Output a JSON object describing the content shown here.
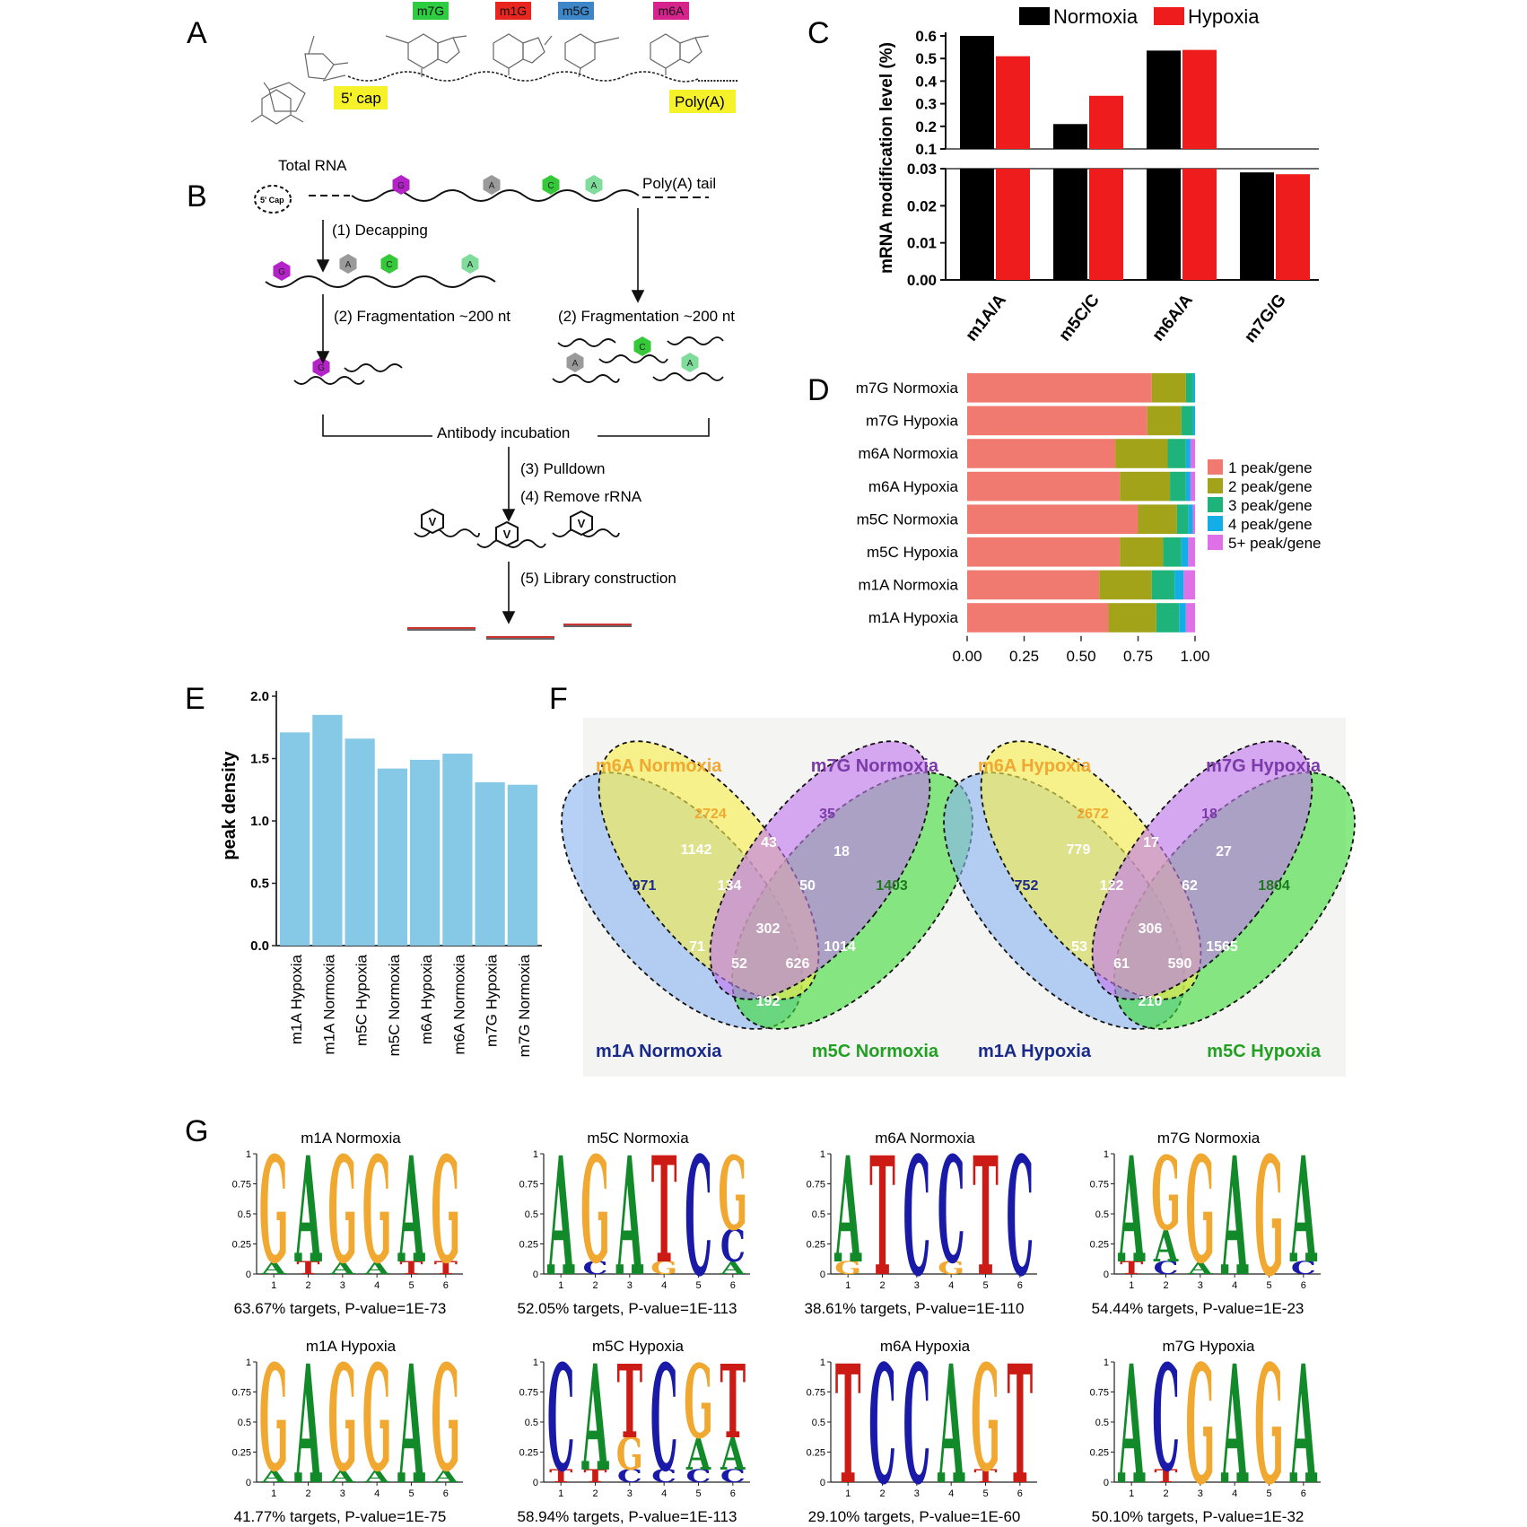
{
  "panels": {
    "A": {
      "letter": "A",
      "tags": [
        {
          "label": "m7G",
          "color": "#2ecc40"
        },
        {
          "label": "m1G",
          "color": "#e8261f"
        },
        {
          "label": "m5G",
          "color": "#3d87c9"
        },
        {
          "label": "m6A",
          "color": "#d6248c"
        }
      ],
      "cap_label": "5' cap",
      "polya_label": "Poly(A)"
    },
    "B": {
      "letter": "B",
      "total_rna": "Total RNA",
      "cap_text": "5' Cap",
      "polya_tail": "Poly(A) tail",
      "step1": "(1) Decapping",
      "step2": "(2) Fragmentation ~200 nt",
      "step2b": "(2) Fragmentation ~200 nt",
      "antibody": "Antibody incubation",
      "step3": "(3) Pulldown",
      "step4": "(4) Remove rRNA",
      "step5": "(5) Library construction"
    },
    "C": {
      "letter": "C"
    },
    "D": {
      "letter": "D"
    },
    "E": {
      "letter": "E"
    },
    "F": {
      "letter": "F"
    },
    "G": {
      "letter": "G"
    }
  },
  "chart_data": [
    {
      "id": "C",
      "type": "bar",
      "categories": [
        "m1A/A",
        "m5C/C",
        "m6A/A",
        "m7G/G"
      ],
      "series": [
        {
          "name": "Normoxia",
          "color": "#000000",
          "values": [
            0.6,
            0.21,
            0.535,
            0.029
          ]
        },
        {
          "name": "Hypoxia",
          "color": "#ee1c1c",
          "values": [
            0.51,
            0.335,
            0.538,
            0.0285
          ]
        }
      ],
      "ylabel": "mRNA modification level (%)",
      "y_axis_break": [
        0.03,
        0.1
      ],
      "yticks_lower": [
        "0.00",
        "0.01",
        "0.02",
        "0.03"
      ],
      "yticks_upper": [
        "0.1",
        "0.2",
        "0.3",
        "0.4",
        "0.5",
        "0.6"
      ]
    },
    {
      "id": "D",
      "type": "bar",
      "orientation": "horizontal-stacked",
      "categories": [
        "m7G Normoxia",
        "m7G Hypoxia",
        "m6A Normoxia",
        "m6A Hypoxia",
        "m5C Normoxia",
        "m5C Hypoxia",
        "m1A Normoxia",
        "m1A Hypoxia"
      ],
      "series": [
        {
          "name": "1 peak/gene",
          "color": "#f07a70",
          "values": [
            0.81,
            0.79,
            0.65,
            0.67,
            0.75,
            0.67,
            0.58,
            0.62
          ]
        },
        {
          "name": "2 peak/gene",
          "color": "#a3a31a",
          "values": [
            0.15,
            0.15,
            0.23,
            0.22,
            0.17,
            0.19,
            0.23,
            0.21
          ]
        },
        {
          "name": "3 peak/gene",
          "color": "#1fb37c",
          "values": [
            0.03,
            0.05,
            0.08,
            0.07,
            0.05,
            0.08,
            0.1,
            0.1
          ]
        },
        {
          "name": "4 peak/gene",
          "color": "#14aee6",
          "values": [
            0.01,
            0.01,
            0.02,
            0.02,
            0.02,
            0.03,
            0.04,
            0.03
          ]
        },
        {
          "name": "5+ peak/gene",
          "color": "#e070e8",
          "values": [
            0.0,
            0.0,
            0.02,
            0.02,
            0.01,
            0.03,
            0.05,
            0.04
          ]
        }
      ],
      "xticks": [
        "0.00",
        "0.25",
        "0.50",
        "0.75",
        "1.00"
      ],
      "xlim": [
        0,
        1
      ]
    },
    {
      "id": "E",
      "type": "bar",
      "categories": [
        "m1A Hypoxia",
        "m1A Normoxia",
        "m5C Hypoxia",
        "m5C Normoxia",
        "m6A Hypoxia",
        "m6A Normoxia",
        "m7G Hypoxia",
        "m7G Normoxia"
      ],
      "values": [
        1.71,
        1.85,
        1.66,
        1.42,
        1.49,
        1.54,
        1.31,
        1.29
      ],
      "ylabel": "peak density",
      "ylim": [
        0,
        2
      ],
      "yticks": [
        "0.0",
        "0.5",
        "1.0",
        "1.5",
        "2.0"
      ],
      "color": "#86c9e6"
    }
  ],
  "venns": [
    {
      "labels": {
        "m6A": "m6A Normoxia",
        "m7G": "m7G Normoxia",
        "m1A": "m1A Normoxia",
        "m5C": "m5C Normoxia"
      },
      "values": {
        "m1A": "971",
        "m6A": "2724",
        "m7G": "35",
        "m5C": "1403",
        "a16": "1142",
        "a67": "43",
        "a75": "18",
        "a1_6_7": "134",
        "a6_7_5": "50",
        "all": "302",
        "a1_7": "71",
        "a1_7_5": "52",
        "a1_6_5": "626",
        "a6_5": "1014",
        "a1_5": "192"
      }
    },
    {
      "labels": {
        "m6A": "m6A Hypoxia",
        "m7G": "m7G Hypoxia",
        "m1A": "m1A Hypoxia",
        "m5C": "m5C Hypoxia"
      },
      "values": {
        "m1A": "752",
        "m6A": "2672",
        "m7G": "18",
        "m5C": "1804",
        "a16": "779",
        "a67": "17",
        "a75": "27",
        "a1_6_7": "122",
        "a6_7_5": "62",
        "all": "306",
        "a1_7": "53",
        "a1_7_5": "61",
        "a1_6_5": "590",
        "a6_5": "1565",
        "a1_5": "210"
      }
    }
  ],
  "motifs": [
    {
      "title": "m1A Normoxia",
      "caption": "63.67% targets, P-value=1E-73",
      "top": [
        "G",
        "A",
        "G",
        "G",
        "A",
        "G"
      ],
      "low": [
        "A",
        "T",
        "A",
        "A",
        "T",
        "T"
      ]
    },
    {
      "title": "m5C Normoxia",
      "caption": "52.05% targets, P-value=1E-113",
      "top": [
        "A",
        "G",
        "A",
        "T",
        "C",
        "G"
      ],
      "low": [
        "",
        "C",
        "",
        "G",
        "",
        "A"
      ],
      "mid": [
        "",
        "",
        "",
        "",
        "",
        "C"
      ]
    },
    {
      "title": "m6A Normoxia",
      "caption": "38.61% targets, P-value=1E-110",
      "top": [
        "A",
        "T",
        "C",
        "C",
        "T",
        "C"
      ],
      "low": [
        "G",
        "",
        "",
        "G",
        "",
        ""
      ]
    },
    {
      "title": "m7G Normoxia",
      "caption": "54.44% targets, P-value=1E-23",
      "top": [
        "A",
        "G",
        "G",
        "A",
        "G",
        "A"
      ],
      "low": [
        "T",
        "C",
        "A",
        "",
        "",
        "C"
      ],
      "mid": [
        "",
        "A",
        "",
        "",
        "",
        ""
      ]
    },
    {
      "title": "m1A Hypoxia",
      "caption": "41.77% targets, P-value=1E-75",
      "top": [
        "G",
        "A",
        "G",
        "G",
        "A",
        "G"
      ],
      "low": [
        "A",
        "",
        "A",
        "A",
        "",
        "A"
      ]
    },
    {
      "title": "m5C Hypoxia",
      "caption": "58.94% targets, P-value=1E-113",
      "top": [
        "C",
        "A",
        "T",
        "C",
        "G",
        "T"
      ],
      "low": [
        "T",
        "T",
        "C",
        "C",
        "C",
        "C"
      ],
      "mid": [
        "",
        "",
        "G",
        "",
        "A",
        "A"
      ]
    },
    {
      "title": "m6A Hypoxia",
      "caption": "29.10% targets, P-value=1E-60",
      "top": [
        "T",
        "C",
        "C",
        "A",
        "G",
        "T"
      ],
      "low": [
        "",
        "",
        "",
        "",
        "T",
        ""
      ]
    },
    {
      "title": "m7G Hypoxia",
      "caption": "50.10% targets, P-value=1E-32",
      "top": [
        "A",
        "C",
        "G",
        "A",
        "G",
        "A"
      ],
      "low": [
        "",
        "T",
        "",
        "",
        "",
        ""
      ]
    }
  ],
  "motif_axis": {
    "yticks": [
      "0",
      "0.25",
      "0.5",
      "0.75",
      "1"
    ],
    "xticks": [
      "1",
      "2",
      "3",
      "4",
      "5",
      "6"
    ]
  },
  "base_colors": {
    "A": "#128a2a",
    "C": "#1a1aa8",
    "G": "#f0a830",
    "T": "#cc1a14"
  }
}
